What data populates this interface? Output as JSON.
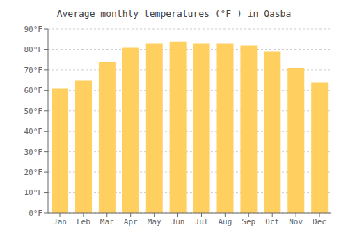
{
  "chart_data": {
    "type": "bar",
    "title": "Average monthly temperatures (°F ) in Qasba",
    "categories": [
      "Jan",
      "Feb",
      "Mar",
      "Apr",
      "May",
      "Jun",
      "Jul",
      "Aug",
      "Sep",
      "Oct",
      "Nov",
      "Dec"
    ],
    "values": [
      61,
      65,
      74,
      81,
      83,
      84,
      83,
      83,
      82,
      79,
      71,
      64
    ],
    "color": "#FFD060",
    "ylim": [
      0,
      90
    ],
    "yticks": [
      {
        "value": 0,
        "label": "0°F"
      },
      {
        "value": 10,
        "label": "10°F"
      },
      {
        "value": 20,
        "label": "20°F"
      },
      {
        "value": 30,
        "label": "30°F"
      },
      {
        "value": 40,
        "label": "40°F"
      },
      {
        "value": 50,
        "label": "50°F"
      },
      {
        "value": 60,
        "label": "60°F"
      },
      {
        "value": 70,
        "label": "70°F"
      },
      {
        "value": 80,
        "label": "80°F"
      },
      {
        "value": 90,
        "label": "90°F"
      }
    ],
    "grid": true
  }
}
